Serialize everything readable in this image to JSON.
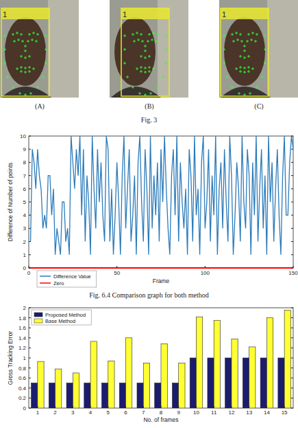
{
  "figure3": {
    "panels": [
      {
        "label": "(A)",
        "box_label": "1"
      },
      {
        "label": "(B)",
        "box_label": "1"
      },
      {
        "label": "(C)",
        "box_label": "1"
      }
    ],
    "caption": "Fig. 3"
  },
  "chart_data": [
    {
      "type": "line",
      "caption": "Fig. 6.4 Comparison graph for both method",
      "x_label": "Frame",
      "y_label": "Difference of Number of points",
      "xlim": [
        0,
        150
      ],
      "xticks": [
        0,
        50,
        100,
        150
      ],
      "ylim": [
        0,
        10
      ],
      "yticks": [
        0,
        1,
        2,
        3,
        4,
        5,
        6,
        7,
        8,
        9,
        10
      ],
      "grid": false,
      "legend": "lower-left",
      "series": [
        {
          "name": "Difference Value",
          "color": "#2b7bba",
          "x": [
            1,
            2,
            3,
            4,
            5,
            6,
            7,
            8,
            9,
            10,
            11,
            12,
            13,
            14,
            15,
            16,
            17,
            18,
            19,
            20,
            21,
            22,
            23,
            24,
            25,
            26,
            27,
            28,
            29,
            30,
            31,
            32,
            33,
            34,
            35,
            36,
            37,
            38,
            39,
            40,
            41,
            42,
            43,
            44,
            45,
            46,
            47,
            48,
            49,
            50,
            51,
            52,
            53,
            54,
            55,
            56,
            57,
            58,
            59,
            60,
            61,
            62,
            63,
            64,
            65,
            66,
            67,
            68,
            69,
            70,
            71,
            72,
            73,
            74,
            75,
            76,
            77,
            78,
            79,
            80,
            81,
            82,
            83,
            84,
            85,
            86,
            87,
            88,
            89,
            90,
            91,
            92,
            93,
            94,
            95,
            96,
            97,
            98,
            99,
            100,
            101,
            102,
            103,
            104,
            105,
            106,
            107,
            108,
            109,
            110,
            111,
            112,
            113,
            114,
            115,
            116,
            117,
            118,
            119,
            120,
            121,
            122,
            123,
            124,
            125,
            126,
            127,
            128,
            129,
            130,
            131,
            132,
            133,
            134,
            135,
            136,
            137,
            138,
            139,
            140,
            141,
            142,
            143,
            144,
            145,
            146,
            147,
            148,
            149,
            150
          ],
          "values": [
            2,
            9,
            8,
            6,
            9,
            7,
            6,
            3,
            4,
            3,
            7,
            7,
            4,
            6,
            1,
            3,
            2,
            1,
            5,
            5,
            2,
            3,
            1,
            10,
            8,
            6,
            9,
            7,
            10,
            4,
            9,
            2,
            7,
            5,
            1,
            10,
            6,
            3,
            9,
            5,
            8,
            4,
            2,
            10,
            9,
            2,
            6,
            1,
            4,
            8,
            5,
            1,
            7,
            10,
            3,
            6,
            9,
            2,
            4,
            7,
            1,
            8,
            10,
            5,
            2,
            9,
            6,
            1,
            10,
            3,
            7,
            4,
            8,
            2,
            9,
            5,
            10,
            6,
            3,
            1,
            7,
            9,
            4,
            10,
            2,
            8,
            5,
            3,
            6,
            1,
            9,
            7,
            2,
            10,
            4,
            6,
            1,
            8,
            10,
            3,
            5,
            9,
            2,
            7,
            4,
            10,
            1,
            6,
            8,
            3,
            9,
            5,
            2,
            10,
            7,
            1,
            4,
            8,
            6,
            2,
            10,
            5,
            3,
            9,
            7,
            1,
            8,
            4,
            10,
            2,
            6,
            9,
            3,
            7,
            1,
            10,
            5,
            8,
            2,
            6,
            9,
            4,
            1,
            7,
            10,
            4,
            4,
            8,
            10,
            9
          ]
        },
        {
          "name": "Zero",
          "color": "#ff0000",
          "x": [
            0,
            150
          ],
          "values": [
            0,
            0
          ]
        }
      ]
    },
    {
      "type": "bar",
      "x_label": "No. of frames",
      "y_label": "Gross Tracking Error",
      "categories": [
        "1",
        "2",
        "3",
        "4",
        "5",
        "6",
        "7",
        "8",
        "9",
        "10",
        "11",
        "12",
        "13",
        "14",
        "15"
      ],
      "ylim": [
        0,
        2
      ],
      "yticks": [
        0,
        0.2,
        0.4,
        0.6,
        0.8,
        1,
        1.2,
        1.4,
        1.6,
        1.8,
        2
      ],
      "grid": false,
      "legend": "upper-left",
      "series": [
        {
          "name": "Proposed Method",
          "color": "#1c1c6e",
          "values": [
            0.5,
            0.5,
            0.5,
            0.5,
            0.5,
            0.5,
            0.5,
            0.5,
            0.5,
            1,
            1,
            1,
            1,
            1,
            1
          ]
        },
        {
          "name": "Base Method",
          "color": "#ffff33",
          "values": [
            0.93,
            0.78,
            0.7,
            1.33,
            0.94,
            1.4,
            0.9,
            1.28,
            0.9,
            1.82,
            1.75,
            1.38,
            1.22,
            1.8,
            1.95
          ]
        }
      ]
    }
  ]
}
